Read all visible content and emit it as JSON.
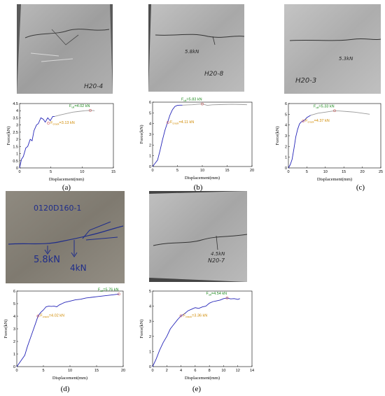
{
  "colors": {
    "curve_main": "#2424b8",
    "curve_tail": "#9a9a9a",
    "ult_marker": "#d06060",
    "crack_marker": "#d06060",
    "ult_text": "#1c8a1c",
    "crack_text": "#d08a00",
    "slab_gray": "#a9a9a9",
    "slab_gray_light": "#c8c8c8",
    "slab_beige": "#8b867c",
    "crack_blue_ink": "#1f2d8a"
  },
  "photos": [
    {
      "id": "a",
      "inscriptions": [
        "H20-4"
      ]
    },
    {
      "id": "b",
      "inscriptions": [
        "5.8kN",
        "H20-8"
      ]
    },
    {
      "id": "c",
      "inscriptions": [
        "5.3kN",
        "H20-3"
      ]
    },
    {
      "id": "d",
      "inscriptions": [
        "0120D160-1",
        "5.8kN",
        "4kN"
      ]
    },
    {
      "id": "e",
      "inscriptions": [
        "4.5kN",
        "N20-7"
      ]
    }
  ],
  "chart_data": [
    {
      "panel": "(a)",
      "type": "line",
      "xlabel": "Displacement(mm)",
      "ylabel": "Force(kN)",
      "xlim": [
        0,
        15
      ],
      "ylim": [
        0,
        4.5
      ],
      "xticks": [
        "0",
        "5",
        "10",
        "15"
      ],
      "yticks": [
        "0",
        "0.5",
        "1",
        "1.5",
        "2",
        "2.5",
        "3",
        "3.5",
        "4",
        "4.5"
      ],
      "ult": {
        "label_prefix": "F",
        "label_sub": "ult",
        "label_value": "=4.02 kN",
        "x": 11.3,
        "y": 4.02
      },
      "crack": {
        "label_prefix": "F",
        "label_sub": "crack",
        "label_value": "=3.13 kN",
        "x": 4.6,
        "y": 3.13
      },
      "series": [
        {
          "values_x": [
            0,
            0.3,
            0.6,
            1.0,
            1.3,
            1.7,
            2.0,
            2.3,
            2.7,
            3.0,
            3.4,
            3.8,
            4.1,
            4.5,
            4.9,
            5.3,
            5.6
          ],
          "values_y": [
            0,
            0.6,
            0.8,
            1.4,
            1.5,
            2.0,
            1.9,
            2.6,
            3.0,
            3.1,
            3.5,
            3.4,
            3.2,
            3.5,
            3.3,
            3.6,
            3.6
          ]
        },
        {
          "values_x": [
            5.6,
            6.5,
            7.5,
            8.5,
            9.5,
            10.5,
            11.3,
            12.0
          ],
          "values_y": [
            3.6,
            3.7,
            3.8,
            3.9,
            3.95,
            4.0,
            4.02,
            4.0
          ]
        }
      ]
    },
    {
      "panel": "(b)",
      "type": "line",
      "xlabel": "Displacement(mm)",
      "ylabel": "Force(kN)",
      "xlim": [
        0,
        20
      ],
      "ylim": [
        0,
        6
      ],
      "xticks": [
        "0",
        "5",
        "10",
        "15",
        "20"
      ],
      "yticks": [
        "0",
        "1",
        "2",
        "3",
        "4",
        "5",
        "6"
      ],
      "ult": {
        "label_prefix": "F",
        "label_sub": "ult",
        "label_value": "=5.83 kN",
        "x": 10.0,
        "y": 5.83
      },
      "crack": {
        "label_prefix": "F",
        "label_sub": "crack",
        "label_value": "=4.11 kN",
        "x": 3.1,
        "y": 4.11
      },
      "series": [
        {
          "values_x": [
            0,
            0.5,
            1.0,
            1.5,
            2.0,
            2.5,
            3.0,
            3.5,
            4.0,
            4.5,
            5.0,
            5.5,
            6.0
          ],
          "values_y": [
            0,
            0.3,
            0.6,
            1.5,
            2.5,
            3.4,
            4.1,
            4.8,
            5.3,
            5.6,
            5.7,
            5.72,
            5.72
          ]
        },
        {
          "values_x": [
            6.0,
            7.0,
            8.0,
            9.0,
            10.0,
            11.0,
            12.0,
            14.0,
            16.0,
            18.0,
            19.0
          ],
          "values_y": [
            5.72,
            5.74,
            5.76,
            5.8,
            5.83,
            5.7,
            5.75,
            5.78,
            5.8,
            5.78,
            5.76
          ]
        }
      ]
    },
    {
      "panel": "(c)",
      "type": "line",
      "xlabel": "Displacement(mm)",
      "ylabel": "Force(kN)",
      "xlim": [
        0,
        25
      ],
      "ylim": [
        0,
        6
      ],
      "xticks": [
        "0",
        "5",
        "10",
        "15",
        "20",
        "25"
      ],
      "yticks": [
        "0",
        "1",
        "2",
        "3",
        "4",
        "5",
        "6"
      ],
      "ult": {
        "label_prefix": "F",
        "label_sub": "ult",
        "label_value": "=5.33 kN",
        "x": 12.5,
        "y": 5.33
      },
      "crack": {
        "label_prefix": "F",
        "label_sub": "crack",
        "label_value": "=4.37 kN",
        "x": 4.0,
        "y": 4.37
      },
      "series": [
        {
          "values_x": [
            0,
            0.5,
            1.0,
            1.5,
            2.0,
            2.5,
            3.0,
            3.5,
            4.0,
            4.5,
            5.0,
            6.0
          ],
          "values_y": [
            0,
            0.3,
            0.8,
            1.8,
            2.9,
            3.6,
            4.1,
            4.3,
            4.37,
            4.5,
            4.7,
            4.9
          ]
        },
        {
          "values_x": [
            6.0,
            8.0,
            10.0,
            12.5,
            14.0,
            16.0,
            18.0,
            20.0,
            22.0
          ],
          "values_y": [
            4.9,
            5.1,
            5.2,
            5.33,
            5.3,
            5.25,
            5.2,
            5.1,
            5.0
          ]
        }
      ]
    },
    {
      "panel": "(d)",
      "type": "line",
      "xlabel": "Displacement(mm)",
      "ylabel": "Force(kN)",
      "xlim": [
        0,
        20
      ],
      "ylim": [
        0,
        6
      ],
      "xticks": [
        "0",
        "5",
        "10",
        "15",
        "20"
      ],
      "yticks": [
        "0",
        "1",
        "2",
        "3",
        "4",
        "5",
        "6"
      ],
      "ult": {
        "label_prefix": "F",
        "label_sub": "ult",
        "label_value": "=5.76 kN",
        "x": 19.2,
        "y": 5.76
      },
      "crack": {
        "label_prefix": "F",
        "label_sub": "crack",
        "label_value": "=4.02 kN",
        "x": 4.0,
        "y": 4.02
      },
      "series": [
        {
          "values_x": [
            0,
            0.5,
            1.0,
            1.5,
            2.0,
            2.5,
            3.0,
            3.5,
            4.0,
            4.5,
            5.0,
            5.5,
            6.0,
            6.5,
            7.0,
            7.5,
            8.0,
            8.5,
            9.0,
            10.0,
            11.0,
            12.0,
            13.0,
            14.0,
            15.0,
            16.0,
            17.0,
            18.0,
            19.2
          ],
          "values_y": [
            0,
            0.3,
            0.6,
            0.9,
            1.6,
            2.2,
            2.8,
            3.4,
            4.02,
            4.3,
            4.5,
            4.75,
            4.8,
            4.78,
            4.8,
            4.75,
            4.9,
            5.0,
            5.1,
            5.2,
            5.3,
            5.35,
            5.45,
            5.5,
            5.55,
            5.6,
            5.65,
            5.7,
            5.76
          ]
        }
      ]
    },
    {
      "panel": "(e)",
      "type": "line",
      "xlabel": "Displacement(mm)",
      "ylabel": "Force(kN)",
      "xlim": [
        0,
        14
      ],
      "ylim": [
        0,
        5
      ],
      "xticks": [
        "0",
        "2",
        "4",
        "6",
        "8",
        "10",
        "12",
        "14"
      ],
      "yticks": [
        "0",
        "1",
        "2",
        "3",
        "4",
        "5"
      ],
      "ult": {
        "label_prefix": "F",
        "label_sub": "ult",
        "label_value": "=4.54 kN",
        "x": 10.5,
        "y": 4.54
      },
      "crack": {
        "label_prefix": "F",
        "label_sub": "crack",
        "label_value": "=3.36 kN",
        "x": 4.0,
        "y": 3.36
      },
      "series": [
        {
          "values_x": [
            0,
            0.5,
            1.0,
            1.5,
            2.0,
            2.5,
            3.0,
            3.5,
            4.0,
            4.5,
            5.0,
            5.5,
            6.0,
            6.5,
            7.0,
            7.5,
            8.0,
            8.5,
            9.0,
            9.5,
            10.0,
            10.5,
            11.0,
            11.5,
            12.0,
            12.3
          ],
          "values_y": [
            0,
            0.5,
            1.1,
            1.6,
            2.0,
            2.5,
            2.8,
            3.1,
            3.36,
            3.5,
            3.7,
            3.8,
            3.9,
            3.85,
            3.95,
            4.0,
            4.2,
            4.3,
            4.35,
            4.4,
            4.5,
            4.54,
            4.48,
            4.5,
            4.45,
            4.5
          ]
        }
      ]
    }
  ]
}
